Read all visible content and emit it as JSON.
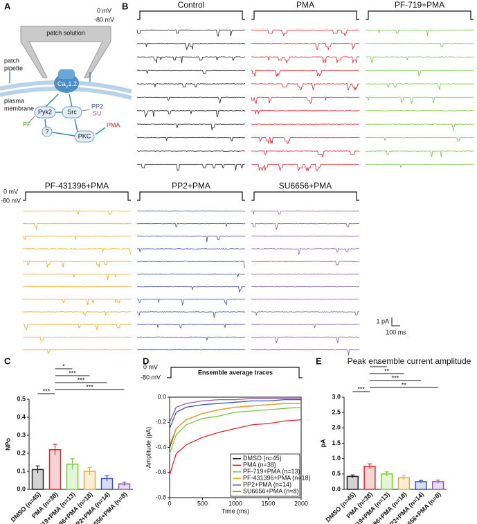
{
  "panel_labels": [
    "A",
    "B",
    "C",
    "D",
    "E"
  ],
  "diagram": {
    "solution": "patch solution",
    "pipette": [
      "patch",
      "pipette"
    ],
    "membrane": [
      "plasma",
      "membrane"
    ],
    "channel": {
      "base": "Ca",
      "sub": "V",
      "suffix": "1.2"
    },
    "pyk2": "Pyk2",
    "src": "Src",
    "pp2": "PP2",
    "su": "SU",
    "pf": "PF",
    "unknown": "?",
    "pkc": "PKC",
    "pma": "PMA"
  },
  "recordings": {
    "protocol": [
      "0 mV",
      "-80 mV"
    ],
    "conditions": [
      {
        "name": "Control",
        "color": "#222222"
      },
      {
        "name": "PMA",
        "color": "#e8242b"
      },
      {
        "name": "PF-719+PMA",
        "color": "#7ac943"
      },
      {
        "name": "PF-431396+PMA",
        "color": "#f7a823"
      },
      {
        "name": "PP2+PMA",
        "color": "#3a55b4"
      },
      {
        "name": "SU6656+PMA",
        "color": "#8e5bb0"
      }
    ],
    "scale": {
      "current": "1 pA",
      "time": "100 ms"
    }
  },
  "chart_data": [
    {
      "type": "bar",
      "y_label": "NPo",
      "categories": [
        "DMSO (n=45)",
        "PMA (n=38)",
        "PF-719+PMA (n=13)",
        "PF-431396+PMA (n=18)",
        "PP2+PMA (n=14)",
        "SU6656+PMA (n=8)"
      ],
      "values": [
        0.11,
        0.22,
        0.14,
        0.1,
        0.06,
        0.03
      ],
      "errors": [
        0.02,
        0.03,
        0.03,
        0.02,
        0.015,
        0.01
      ],
      "colors": [
        "#222222",
        "#e8242b",
        "#7ac943",
        "#f7a823",
        "#3a55b4",
        "#8e5bb0"
      ],
      "ylim": [
        0,
        0.5
      ],
      "yticks": [
        {
          "value": 0,
          "label": "0.0"
        },
        0.1,
        0.2,
        0.3,
        0.4,
        0.5
      ],
      "significance": [
        "***",
        "*",
        "***",
        "***",
        "***"
      ]
    },
    {
      "type": "line",
      "title": "Ensemble average traces",
      "protocol": [
        "0 mV",
        "-80 mV"
      ],
      "x_label": "Time (ms)",
      "y_label": "Amplitude (pA)",
      "x": [
        0,
        100,
        250,
        500,
        750,
        1000,
        1250,
        1500,
        1750,
        2000
      ],
      "series": [
        {
          "name": "DMSO (n=45)",
          "color": "#222222",
          "values": [
            -0.4,
            -0.25,
            -0.18,
            -0.13,
            -0.1,
            -0.08,
            -0.07,
            -0.06,
            -0.05,
            -0.05
          ]
        },
        {
          "name": "PMA (n=38)",
          "color": "#e8242b",
          "values": [
            -0.62,
            -0.45,
            -0.38,
            -0.32,
            -0.28,
            -0.25,
            -0.22,
            -0.21,
            -0.19,
            -0.18
          ]
        },
        {
          "name": "PF-719+PMA (n=13)",
          "color": "#7ac943",
          "values": [
            -0.45,
            -0.3,
            -0.22,
            -0.17,
            -0.15,
            -0.12,
            -0.11,
            -0.1,
            -0.09,
            -0.08
          ]
        },
        {
          "name": "PF-431396+PMA (n=18)",
          "color": "#f7a823",
          "values": [
            -0.38,
            -0.25,
            -0.18,
            -0.13,
            -0.1,
            -0.08,
            -0.07,
            -0.06,
            -0.05,
            -0.05
          ]
        },
        {
          "name": "PP2+PMA (n=14)",
          "color": "#3a55b4",
          "values": [
            -0.25,
            -0.12,
            -0.08,
            -0.06,
            -0.05,
            -0.04,
            -0.03,
            -0.03,
            -0.02,
            -0.02
          ]
        },
        {
          "name": "SU6656+PMA (n=8)",
          "color": "#8e5bb0",
          "values": [
            -0.2,
            -0.08,
            -0.05,
            -0.03,
            -0.02,
            -0.02,
            -0.01,
            -0.01,
            -0.01,
            -0.01
          ]
        }
      ],
      "xlim": [
        0,
        2000
      ],
      "xticks": [
        0,
        500,
        1000,
        1500,
        2000
      ],
      "ylim": [
        -0.8,
        0
      ],
      "yticks": [
        -0.8,
        -0.6,
        -0.4,
        -0.2,
        {
          "value": 0,
          "label": "0.0"
        }
      ],
      "legend": "lower right"
    },
    {
      "type": "bar",
      "title": "Peak ensemble current amplitude",
      "y_label": "pA",
      "categories": [
        "DMSO (n=45)",
        "PMA (n=38)",
        "PF-719+PMA (n=13)",
        "PF-431396+PMA (n=18)",
        "PP2+PMA (n=14)",
        "SU6656+PMA (n=8)"
      ],
      "values": [
        0.42,
        0.75,
        0.5,
        0.38,
        0.25,
        0.25
      ],
      "errors": [
        0.05,
        0.08,
        0.07,
        0.07,
        0.04,
        0.05
      ],
      "colors": [
        "#222222",
        "#e8242b",
        "#7ac943",
        "#f7a823",
        "#3a55b4",
        "#8e5bb0"
      ],
      "ylim": [
        0,
        3
      ],
      "yticks": [
        {
          "value": 0,
          "label": "0.0"
        },
        0.5,
        {
          "value": 1,
          "label": "1.0"
        },
        1.5,
        {
          "value": 2,
          "label": "2.0"
        },
        2.5,
        {
          "value": 3,
          "label": "3.0"
        }
      ],
      "significance": [
        "***",
        "*",
        "**",
        "***",
        "**"
      ]
    }
  ]
}
